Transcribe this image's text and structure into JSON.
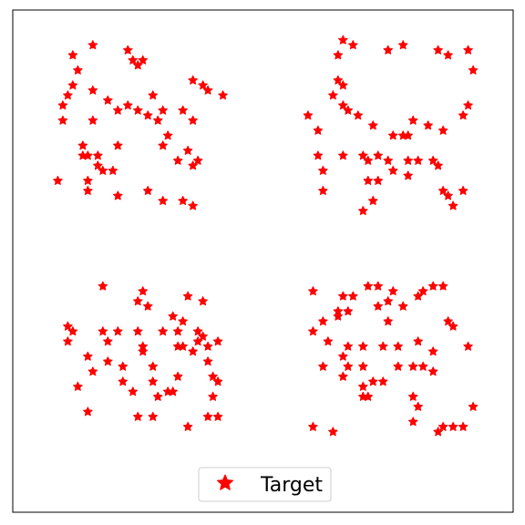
{
  "chart_data": {
    "type": "scatter",
    "title": "",
    "xlabel": "",
    "ylabel": "",
    "xlim": [
      0,
      10
    ],
    "ylim": [
      0,
      10
    ],
    "grid": false,
    "axis_ticks": false,
    "legend": {
      "placement": "bottom-center",
      "entries": [
        "Target"
      ]
    },
    "series": [
      {
        "name": "Target",
        "marker": "star",
        "color": "#ff0000",
        "points": [
          [
            1.2,
            9.1
          ],
          [
            1.6,
            9.3
          ],
          [
            2.3,
            9.2
          ],
          [
            2.4,
            9.0
          ],
          [
            2.6,
            9.0
          ],
          [
            2.5,
            8.9
          ],
          [
            1.3,
            8.8
          ],
          [
            1.2,
            8.5
          ],
          [
            1.1,
            8.3
          ],
          [
            1.6,
            8.4
          ],
          [
            1.9,
            8.2
          ],
          [
            1.0,
            8.1
          ],
          [
            1.0,
            7.8
          ],
          [
            1.6,
            7.8
          ],
          [
            2.1,
            8.0
          ],
          [
            2.3,
            8.1
          ],
          [
            2.5,
            8.0
          ],
          [
            2.8,
            8.3
          ],
          [
            2.7,
            7.9
          ],
          [
            3.6,
            8.6
          ],
          [
            3.8,
            8.5
          ],
          [
            3.9,
            8.4
          ],
          [
            4.2,
            8.3
          ],
          [
            3.0,
            8.0
          ],
          [
            2.9,
            7.8
          ],
          [
            3.4,
            8.0
          ],
          [
            3.6,
            7.8
          ],
          [
            3.1,
            7.5
          ],
          [
            1.4,
            7.3
          ],
          [
            1.4,
            7.1
          ],
          [
            1.5,
            7.1
          ],
          [
            1.7,
            7.1
          ],
          [
            1.7,
            6.9
          ],
          [
            1.8,
            6.8
          ],
          [
            2.0,
            6.8
          ],
          [
            2.1,
            7.3
          ],
          [
            3.0,
            7.3
          ],
          [
            3.5,
            7.2
          ],
          [
            3.3,
            7.0
          ],
          [
            3.6,
            6.9
          ],
          [
            3.7,
            7.0
          ],
          [
            0.9,
            6.6
          ],
          [
            1.5,
            6.6
          ],
          [
            1.5,
            6.4
          ],
          [
            2.1,
            6.3
          ],
          [
            2.7,
            6.4
          ],
          [
            3.0,
            6.2
          ],
          [
            3.4,
            6.2
          ],
          [
            3.6,
            6.1
          ],
          [
            6.6,
            9.4
          ],
          [
            6.5,
            9.1
          ],
          [
            6.8,
            9.3
          ],
          [
            7.5,
            9.2
          ],
          [
            7.8,
            9.3
          ],
          [
            8.5,
            9.2
          ],
          [
            8.7,
            9.1
          ],
          [
            9.1,
            9.2
          ],
          [
            9.2,
            8.8
          ],
          [
            6.5,
            8.6
          ],
          [
            6.6,
            8.5
          ],
          [
            6.4,
            8.3
          ],
          [
            6.6,
            8.1
          ],
          [
            6.7,
            8.0
          ],
          [
            5.9,
            7.9
          ],
          [
            6.1,
            7.6
          ],
          [
            6.9,
            7.9
          ],
          [
            7.2,
            7.7
          ],
          [
            7.6,
            7.5
          ],
          [
            7.8,
            7.5
          ],
          [
            7.9,
            7.5
          ],
          [
            8.0,
            7.8
          ],
          [
            8.3,
            7.7
          ],
          [
            8.6,
            7.6
          ],
          [
            9.1,
            8.1
          ],
          [
            9.0,
            7.9
          ],
          [
            6.1,
            7.1
          ],
          [
            6.6,
            7.1
          ],
          [
            7.0,
            7.1
          ],
          [
            7.1,
            7.0
          ],
          [
            7.3,
            7.1
          ],
          [
            7.5,
            7.0
          ],
          [
            7.6,
            6.8
          ],
          [
            7.9,
            7.0
          ],
          [
            8.1,
            7.0
          ],
          [
            8.5,
            6.9
          ],
          [
            8.4,
            7.0
          ],
          [
            6.2,
            6.8
          ],
          [
            7.1,
            6.6
          ],
          [
            7.3,
            6.6
          ],
          [
            7.9,
            6.7
          ],
          [
            8.6,
            6.4
          ],
          [
            8.7,
            6.3
          ],
          [
            9.0,
            6.4
          ],
          [
            6.2,
            6.4
          ],
          [
            7.2,
            6.2
          ],
          [
            8.8,
            6.1
          ],
          [
            7.0,
            6.0
          ],
          [
            1.8,
            4.5
          ],
          [
            2.6,
            4.4
          ],
          [
            2.5,
            4.2
          ],
          [
            3.5,
            4.3
          ],
          [
            2.7,
            4.1
          ],
          [
            3.8,
            4.2
          ],
          [
            3.2,
            3.9
          ],
          [
            3.4,
            3.8
          ],
          [
            3.7,
            3.6
          ],
          [
            3.8,
            3.5
          ],
          [
            3.7,
            3.4
          ],
          [
            1.1,
            3.7
          ],
          [
            1.2,
            3.6
          ],
          [
            1.8,
            3.6
          ],
          [
            2.1,
            3.6
          ],
          [
            2.5,
            3.6
          ],
          [
            3.0,
            3.6
          ],
          [
            3.3,
            3.6
          ],
          [
            3.4,
            3.3
          ],
          [
            1.1,
            3.4
          ],
          [
            1.5,
            3.1
          ],
          [
            1.9,
            3.4
          ],
          [
            2.6,
            3.3
          ],
          [
            2.6,
            3.2
          ],
          [
            3.3,
            3.3
          ],
          [
            3.6,
            3.2
          ],
          [
            3.9,
            3.3
          ],
          [
            3.9,
            3.0
          ],
          [
            4.1,
            3.4
          ],
          [
            1.6,
            2.8
          ],
          [
            1.9,
            3.0
          ],
          [
            2.2,
            2.9
          ],
          [
            2.2,
            2.6
          ],
          [
            2.8,
            2.9
          ],
          [
            2.8,
            2.6
          ],
          [
            3.3,
            2.7
          ],
          [
            3.2,
            2.4
          ],
          [
            3.1,
            2.4
          ],
          [
            4.0,
            2.7
          ],
          [
            4.1,
            2.6
          ],
          [
            1.3,
            2.5
          ],
          [
            2.4,
            2.4
          ],
          [
            2.9,
            2.3
          ],
          [
            4.0,
            2.3
          ],
          [
            1.5,
            2.0
          ],
          [
            2.5,
            1.9
          ],
          [
            2.8,
            1.9
          ],
          [
            3.5,
            1.7
          ],
          [
            3.9,
            1.9
          ],
          [
            4.1,
            1.9
          ],
          [
            7.1,
            4.5
          ],
          [
            7.3,
            4.5
          ],
          [
            7.6,
            4.4
          ],
          [
            8.1,
            4.3
          ],
          [
            8.2,
            4.4
          ],
          [
            8.4,
            4.5
          ],
          [
            8.6,
            4.5
          ],
          [
            6.0,
            4.4
          ],
          [
            6.6,
            4.3
          ],
          [
            6.8,
            4.3
          ],
          [
            7.3,
            4.1
          ],
          [
            7.5,
            4.2
          ],
          [
            7.8,
            4.1
          ],
          [
            6.2,
            3.8
          ],
          [
            6.5,
            3.9
          ],
          [
            6.5,
            4.0
          ],
          [
            6.7,
            4.0
          ],
          [
            7.5,
            3.8
          ],
          [
            8.7,
            3.8
          ],
          [
            8.8,
            3.7
          ],
          [
            6.0,
            3.6
          ],
          [
            6.3,
            3.4
          ],
          [
            6.6,
            3.1
          ],
          [
            6.7,
            3.3
          ],
          [
            7.0,
            3.3
          ],
          [
            7.4,
            3.3
          ],
          [
            7.7,
            3.3
          ],
          [
            8.1,
            3.4
          ],
          [
            8.4,
            3.2
          ],
          [
            6.2,
            2.9
          ],
          [
            6.7,
            2.9
          ],
          [
            7.0,
            2.9
          ],
          [
            7.2,
            2.6
          ],
          [
            7.4,
            2.6
          ],
          [
            7.7,
            2.9
          ],
          [
            8.0,
            2.9
          ],
          [
            8.2,
            2.9
          ],
          [
            8.4,
            2.8
          ],
          [
            9.1,
            3.3
          ],
          [
            6.6,
            2.7
          ],
          [
            7.0,
            2.5
          ],
          [
            8.0,
            2.3
          ],
          [
            8.1,
            2.1
          ],
          [
            9.2,
            2.1
          ],
          [
            7.1,
            2.3
          ],
          [
            7.0,
            2.3
          ],
          [
            8.0,
            1.8
          ],
          [
            8.6,
            1.7
          ],
          [
            8.8,
            1.7
          ],
          [
            9.0,
            1.7
          ],
          [
            6.0,
            1.7
          ],
          [
            6.4,
            1.6
          ],
          [
            8.5,
            1.6
          ]
        ]
      }
    ]
  }
}
